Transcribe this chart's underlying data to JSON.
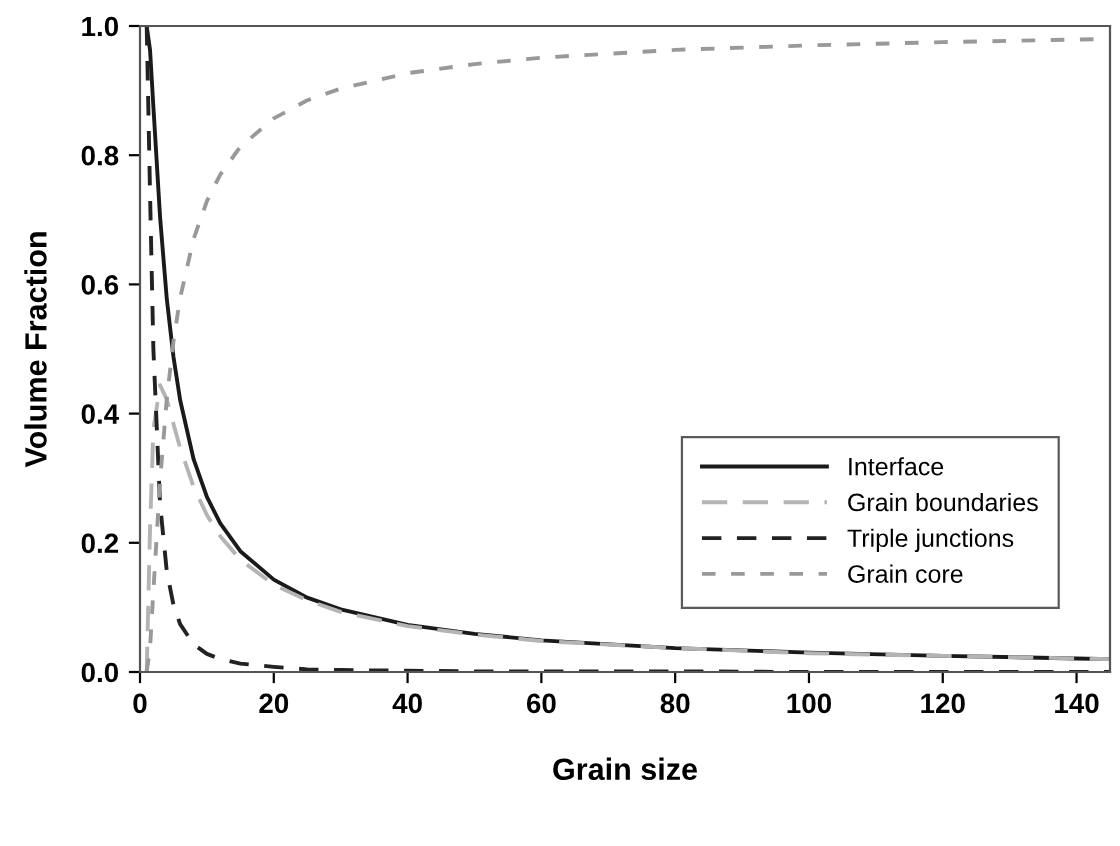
{
  "chart_data": {
    "type": "line",
    "xlabel": "Grain size",
    "ylabel": "Volume Fraction",
    "x": [
      1,
      1.5,
      2,
      3,
      4,
      5,
      6,
      8,
      10,
      12,
      15,
      20,
      25,
      30,
      40,
      50,
      60,
      80,
      100,
      120,
      140,
      145
    ],
    "series": [
      {
        "name": "Interface",
        "color": "#1a1a1a",
        "line_style": "solid",
        "values": [
          1,
          0.963,
          0.875,
          0.704,
          0.578,
          0.488,
          0.421,
          0.33,
          0.271,
          0.23,
          0.187,
          0.143,
          0.115,
          0.097,
          0.073,
          0.059,
          0.049,
          0.037,
          0.03,
          0.025,
          0.021,
          0.02
        ]
      },
      {
        "name": "Grain boundaries",
        "color": "#b4b4b4",
        "line_style": "dashed",
        "values": [
          0,
          0.222,
          0.375,
          0.444,
          0.422,
          0.384,
          0.347,
          0.287,
          0.243,
          0.21,
          0.174,
          0.135,
          0.111,
          0.093,
          0.071,
          0.058,
          0.048,
          0.037,
          0.029,
          0.025,
          0.021,
          0.02
        ]
      },
      {
        "name": "Triple junctions",
        "color": "#222222",
        "line_style": "dashed",
        "values": [
          1,
          0.741,
          0.5,
          0.26,
          0.156,
          0.104,
          0.074,
          0.043,
          0.028,
          0.02,
          0.013,
          0.008,
          0.004,
          0.003,
          0.002,
          0.001,
          0.001,
          0.001,
          0,
          0,
          0,
          0
        ]
      },
      {
        "name": "Grain core",
        "color": "#999999",
        "line_style": "dashed",
        "values": [
          0,
          0.037,
          0.125,
          0.296,
          0.422,
          0.512,
          0.579,
          0.67,
          0.729,
          0.77,
          0.813,
          0.857,
          0.885,
          0.903,
          0.927,
          0.941,
          0.951,
          0.963,
          0.97,
          0.975,
          0.979,
          0.98
        ]
      }
    ],
    "xlim": [
      0,
      145
    ],
    "xticks": [
      0,
      20,
      40,
      60,
      80,
      100,
      120,
      140
    ],
    "ylim": [
      0,
      1
    ],
    "yticks": [
      {
        "value": 0,
        "label": "0.0"
      },
      {
        "value": 0.2,
        "label": "0.2"
      },
      {
        "value": 0.4,
        "label": "0.4"
      },
      {
        "value": 0.6,
        "label": "0.6"
      },
      {
        "value": 0.8,
        "label": "0.8"
      },
      {
        "value": 1,
        "label": "1.0"
      }
    ],
    "legend": "bottom right",
    "grid": false,
    "marker": "none"
  }
}
